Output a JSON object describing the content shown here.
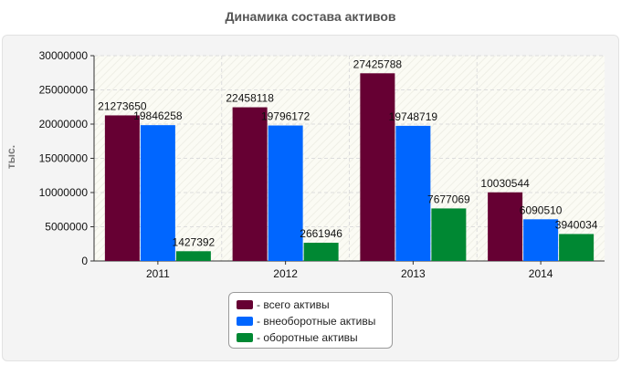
{
  "chart_data": {
    "type": "bar",
    "title": "Динамика состава активов",
    "ylabel": "тыс.",
    "xlabel": "",
    "categories": [
      "2011",
      "2012",
      "2013",
      "2014"
    ],
    "ylim": [
      0,
      30000000
    ],
    "yticks": [
      0,
      5000000,
      10000000,
      15000000,
      20000000,
      25000000,
      30000000
    ],
    "grid": true,
    "legend_position": "bottom",
    "series": [
      {
        "name": "- всего активы",
        "color": "#660033",
        "values": [
          21273650,
          22458118,
          27425788,
          10030544
        ]
      },
      {
        "name": "- внеоборотные активы",
        "color": "#0066ff",
        "values": [
          19846258,
          19796172,
          19748719,
          6090510
        ]
      },
      {
        "name": "- оборотные активы",
        "color": "#008833",
        "values": [
          1427392,
          2661946,
          7677069,
          3940034
        ]
      }
    ]
  }
}
